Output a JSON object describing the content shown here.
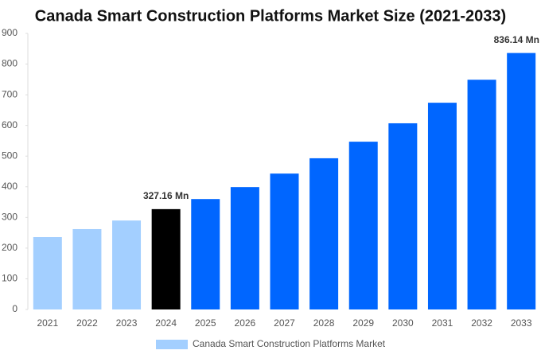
{
  "chart_data": {
    "type": "bar",
    "title": "Canada Smart Construction Platforms Market Size (2021-2033)",
    "categories": [
      "2021",
      "2022",
      "2023",
      "2024",
      "2025",
      "2026",
      "2027",
      "2028",
      "2029",
      "2030",
      "2031",
      "2032",
      "2033"
    ],
    "series": [
      {
        "name": "Canada Smart Construction Platforms Market",
        "color": "#a3cfff",
        "colors": [
          "#a3cfff",
          "#a3cfff",
          "#a3cfff",
          "#000000",
          "#0066ff",
          "#0066ff",
          "#0066ff",
          "#0066ff",
          "#0066ff",
          "#0066ff",
          "#0066ff",
          "#0066ff",
          "#0066ff"
        ],
        "values": [
          236,
          262,
          290,
          327.16,
          360,
          399,
          443,
          493,
          547,
          607,
          674,
          749,
          836.14
        ],
        "value_labels": [
          null,
          null,
          null,
          "327.16 Mn",
          null,
          null,
          null,
          null,
          null,
          null,
          null,
          null,
          "836.14 Mn"
        ]
      }
    ],
    "ylim": [
      0,
      900
    ],
    "yticks": [
      0,
      100,
      200,
      300,
      400,
      500,
      600,
      700,
      800,
      900
    ],
    "grid": false,
    "legend": "bottom"
  }
}
